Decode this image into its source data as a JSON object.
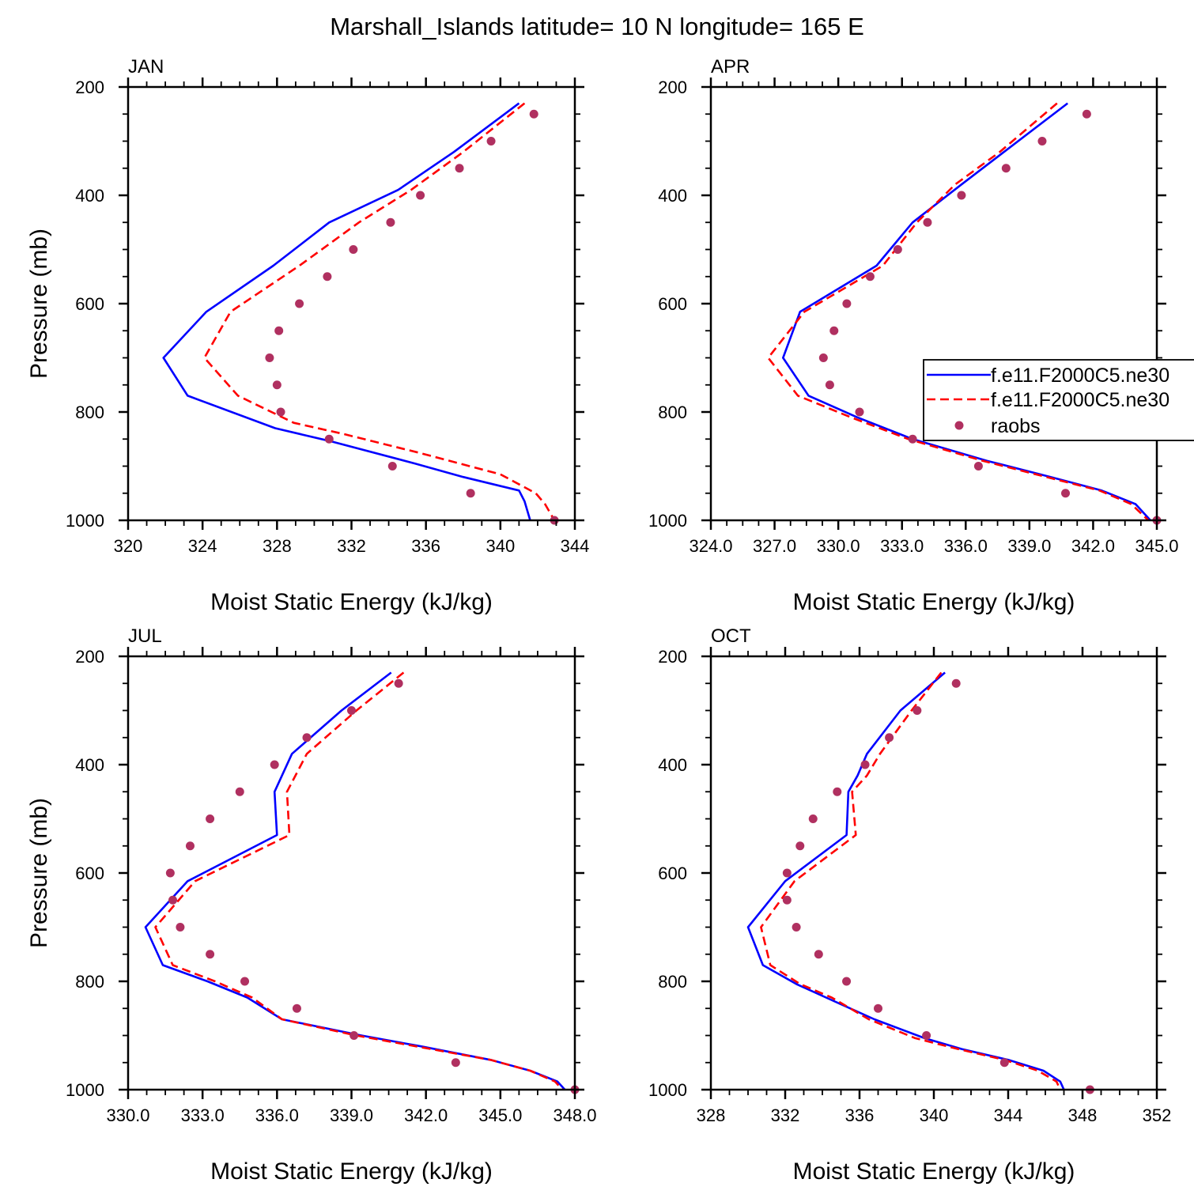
{
  "title": "Marshall_Islands  latitude= 10 N longitude= 165 E",
  "legend": {
    "entries": [
      {
        "label": "f.e11.F2000C5.ne30",
        "style": "solid",
        "color": "#0000ff"
      },
      {
        "label": "f.e11.F2000C5.ne30",
        "style": "dashed",
        "color": "#ff0000"
      },
      {
        "label": "raobs",
        "style": "marker",
        "color": "#b03060"
      }
    ]
  },
  "colors": {
    "model_solid": "#0000ff",
    "model_dashed": "#ff0000",
    "raobs": "#b03060"
  },
  "chart_data": [
    {
      "type": "line",
      "panel": "JAN",
      "xlabel": "Moist Static Energy (kJ/kg)",
      "ylabel": "Pressure (mb)",
      "xlim": [
        320,
        344
      ],
      "ylim": [
        200,
        1000
      ],
      "xticks": [
        320,
        324,
        328,
        332,
        336,
        340,
        344
      ],
      "xtick_labels": [
        "320",
        "324",
        "328",
        "332",
        "336",
        "340",
        "344"
      ],
      "yticks": [
        200,
        400,
        600,
        800,
        1000
      ],
      "ytick_labels": [
        "200",
        "400",
        "600",
        "800",
        "1000"
      ],
      "series": [
        {
          "name": "f.e11.F2000C5.ne30",
          "style": "solid",
          "x": [
            341.0,
            337.5,
            334.5,
            330.8,
            327.8,
            324.2,
            321.9,
            323.2,
            327.9,
            331.0,
            335.4,
            338.0,
            341.0,
            341.3,
            341.6
          ],
          "y": [
            230,
            320,
            390,
            450,
            530,
            615,
            700,
            770,
            830,
            855,
            895,
            920,
            945,
            965,
            1000
          ]
        },
        {
          "name": "f.e11.F2000C5.ne30",
          "style": "dashed",
          "x": [
            341.3,
            338.0,
            335.2,
            332.4,
            329.2,
            325.5,
            324.1,
            325.9,
            328.9,
            331.5,
            335.6,
            340.0,
            341.9,
            342.4,
            342.9
          ],
          "y": [
            230,
            320,
            390,
            450,
            530,
            615,
            700,
            770,
            820,
            840,
            875,
            915,
            950,
            970,
            1000
          ]
        },
        {
          "name": "raobs",
          "style": "marker",
          "x": [
            341.8,
            339.5,
            337.8,
            335.7,
            334.1,
            332.1,
            330.7,
            329.2,
            328.1,
            327.6,
            328.0,
            328.2,
            330.8,
            334.2,
            338.4,
            342.9
          ],
          "y": [
            250,
            300,
            350,
            400,
            450,
            500,
            550,
            600,
            650,
            700,
            750,
            800,
            850,
            900,
            950,
            1000
          ]
        }
      ]
    },
    {
      "type": "line",
      "panel": "APR",
      "xlabel": "Moist Static Energy (kJ/kg)",
      "ylabel": "Pressure (mb)",
      "xlim": [
        324,
        345
      ],
      "ylim": [
        200,
        1000
      ],
      "xticks": [
        324,
        327,
        330,
        333,
        336,
        339,
        342,
        345
      ],
      "xtick_labels": [
        "324.0",
        "327.0",
        "330.0",
        "333.0",
        "336.0",
        "339.0",
        "342.0",
        "345.0"
      ],
      "yticks": [
        200,
        400,
        600,
        800,
        1000
      ],
      "ytick_labels": [
        "200",
        "400",
        "600",
        "800",
        "1000"
      ],
      "series": [
        {
          "name": "f.e11.F2000C5.ne30",
          "style": "solid",
          "x": [
            340.8,
            337.8,
            335.8,
            333.5,
            331.8,
            328.2,
            327.4,
            328.6,
            330.9,
            333.5,
            337.0,
            340.0,
            342.4,
            344.0,
            344.7
          ],
          "y": [
            230,
            320,
            380,
            450,
            530,
            615,
            700,
            770,
            810,
            850,
            890,
            920,
            945,
            970,
            1000
          ]
        },
        {
          "name": "f.e11.F2000C5.ne30",
          "style": "dashed",
          "x": [
            340.3,
            337.6,
            335.5,
            333.7,
            332.1,
            328.4,
            326.7,
            328.1,
            330.6,
            333.3,
            336.8,
            339.8,
            342.3,
            343.8,
            344.6
          ],
          "y": [
            230,
            320,
            380,
            450,
            530,
            615,
            700,
            770,
            810,
            850,
            890,
            920,
            945,
            970,
            1000
          ]
        },
        {
          "name": "raobs",
          "style": "marker",
          "x": [
            341.7,
            339.6,
            337.9,
            335.8,
            334.2,
            332.8,
            331.5,
            330.4,
            329.8,
            329.3,
            329.6,
            331.0,
            333.5,
            336.6,
            340.7,
            345.0
          ],
          "y": [
            250,
            300,
            350,
            400,
            450,
            500,
            550,
            600,
            650,
            700,
            750,
            800,
            850,
            900,
            950,
            1000
          ]
        }
      ]
    },
    {
      "type": "line",
      "panel": "JUL",
      "xlabel": "Moist Static Energy (kJ/kg)",
      "ylabel": "Pressure (mb)",
      "xlim": [
        330,
        348
      ],
      "ylim": [
        200,
        1000
      ],
      "xticks": [
        330,
        333,
        336,
        339,
        342,
        345,
        348
      ],
      "xtick_labels": [
        "330.0",
        "333.0",
        "336.0",
        "339.0",
        "342.0",
        "345.0",
        "348.0"
      ],
      "yticks": [
        200,
        400,
        600,
        800,
        1000
      ],
      "ytick_labels": [
        "200",
        "400",
        "600",
        "800",
        "1000"
      ],
      "series": [
        {
          "name": "f.e11.F2000C5.ne30",
          "style": "solid",
          "x": [
            340.6,
            338.6,
            336.6,
            335.9,
            336.0,
            332.4,
            330.7,
            331.4,
            333.2,
            334.8,
            336.2,
            339.4,
            341.8,
            344.6,
            346.2,
            347.3,
            347.6
          ],
          "y": [
            230,
            300,
            380,
            450,
            530,
            615,
            700,
            770,
            800,
            830,
            870,
            900,
            920,
            945,
            965,
            985,
            1000
          ]
        },
        {
          "name": "f.e11.F2000C5.ne30",
          "style": "dashed",
          "x": [
            341.1,
            339.2,
            337.2,
            336.4,
            336.5,
            332.7,
            331.1,
            331.8,
            333.5,
            335.0,
            336.2,
            339.2,
            341.6,
            344.6,
            346.2,
            347.2,
            347.5
          ],
          "y": [
            230,
            300,
            380,
            450,
            530,
            615,
            700,
            770,
            800,
            830,
            870,
            900,
            920,
            945,
            965,
            985,
            1000
          ]
        },
        {
          "name": "raobs",
          "style": "marker",
          "x": [
            340.9,
            339.0,
            337.2,
            335.9,
            334.5,
            333.3,
            332.5,
            331.7,
            331.8,
            332.1,
            333.3,
            334.7,
            336.8,
            339.1,
            343.2,
            348.0
          ],
          "y": [
            250,
            300,
            350,
            400,
            450,
            500,
            550,
            600,
            650,
            700,
            750,
            800,
            850,
            900,
            950,
            1000
          ]
        }
      ]
    },
    {
      "type": "line",
      "panel": "OCT",
      "xlabel": "Moist Static Energy (kJ/kg)",
      "ylabel": "Pressure (mb)",
      "xlim": [
        328,
        352
      ],
      "ylim": [
        200,
        1000
      ],
      "xticks": [
        328,
        332,
        336,
        340,
        344,
        348,
        352
      ],
      "xtick_labels": [
        "328",
        "332",
        "336",
        "340",
        "344",
        "348",
        "352"
      ],
      "yticks": [
        200,
        400,
        600,
        800,
        1000
      ],
      "ytick_labels": [
        "200",
        "400",
        "600",
        "800",
        "1000"
      ],
      "series": [
        {
          "name": "f.e11.F2000C5.ne30",
          "style": "solid",
          "x": [
            340.6,
            338.2,
            336.4,
            335.9,
            335.4,
            335.3,
            332.0,
            330.0,
            330.8,
            332.6,
            334.2,
            336.8,
            339.5,
            341.5,
            344.0,
            345.9,
            346.8,
            347.0
          ],
          "y": [
            230,
            300,
            380,
            420,
            450,
            530,
            615,
            700,
            770,
            805,
            830,
            870,
            905,
            925,
            945,
            965,
            985,
            1000
          ]
        },
        {
          "name": "f.e11.F2000C5.ne30",
          "style": "dashed",
          "x": [
            340.4,
            338.8,
            337.1,
            336.4,
            335.6,
            335.8,
            332.5,
            330.7,
            331.2,
            332.8,
            334.5,
            336.5,
            339.0,
            341.3,
            343.8,
            345.6,
            346.6,
            346.8
          ],
          "y": [
            230,
            300,
            380,
            420,
            450,
            530,
            615,
            700,
            770,
            805,
            830,
            870,
            905,
            925,
            945,
            965,
            985,
            1000
          ]
        },
        {
          "name": "raobs",
          "style": "marker",
          "x": [
            341.2,
            339.1,
            337.6,
            336.3,
            334.8,
            333.5,
            332.8,
            332.1,
            332.1,
            332.6,
            333.8,
            335.3,
            337.0,
            339.6,
            343.8,
            348.4
          ],
          "y": [
            250,
            300,
            350,
            400,
            450,
            500,
            550,
            600,
            650,
            700,
            750,
            800,
            850,
            900,
            950,
            1000
          ]
        }
      ]
    }
  ]
}
